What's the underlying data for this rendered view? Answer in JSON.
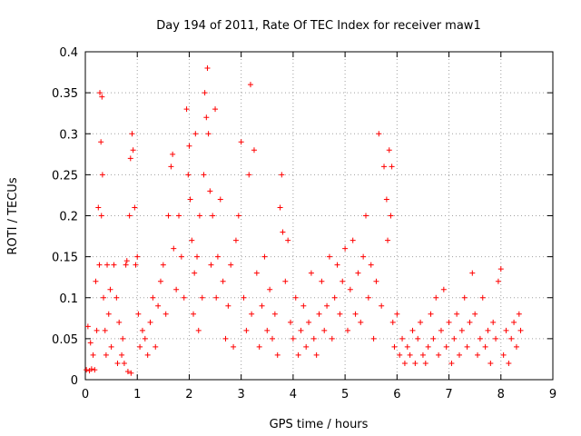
{
  "chart_data": {
    "type": "scatter",
    "title": "Day 194 of 2011, Rate Of TEC Index for receiver maw1",
    "xlabel": "GPS time / hours",
    "ylabel": "ROTI / TECUs",
    "xlim": [
      0,
      9
    ],
    "ylim": [
      0,
      0.4
    ],
    "x_ticks": [
      "0",
      "1",
      "2",
      "3",
      "4",
      "5",
      "6",
      "7",
      "8",
      "9"
    ],
    "y_ticks": [
      "0",
      "0.05",
      "0.1",
      "0.15",
      "0.2",
      "0.25",
      "0.3",
      "0.35",
      "0.4"
    ],
    "grid": true,
    "marker": "+",
    "marker_color": "#ff0000",
    "series": [
      {
        "name": "maw1",
        "points": [
          [
            0.02,
            0.012
          ],
          [
            0.05,
            0.065
          ],
          [
            0.08,
            0.011
          ],
          [
            0.1,
            0.045
          ],
          [
            0.12,
            0.013
          ],
          [
            0.15,
            0.03
          ],
          [
            0.18,
            0.012
          ],
          [
            0.2,
            0.12
          ],
          [
            0.22,
            0.06
          ],
          [
            0.25,
            0.21
          ],
          [
            0.27,
            0.14
          ],
          [
            0.28,
            0.35
          ],
          [
            0.3,
            0.29
          ],
          [
            0.31,
            0.2
          ],
          [
            0.32,
            0.345
          ],
          [
            0.33,
            0.25
          ],
          [
            0.35,
            0.1
          ],
          [
            0.38,
            0.06
          ],
          [
            0.4,
            0.03
          ],
          [
            0.42,
            0.14
          ],
          [
            0.45,
            0.08
          ],
          [
            0.48,
            0.11
          ],
          [
            0.5,
            0.04
          ],
          [
            0.55,
            0.14
          ],
          [
            0.6,
            0.1
          ],
          [
            0.62,
            0.02
          ],
          [
            0.65,
            0.07
          ],
          [
            0.7,
            0.03
          ],
          [
            0.72,
            0.05
          ],
          [
            0.75,
            0.02
          ],
          [
            0.78,
            0.14
          ],
          [
            0.8,
            0.145
          ],
          [
            0.82,
            0.01
          ],
          [
            0.85,
            0.2
          ],
          [
            0.87,
            0.27
          ],
          [
            0.88,
            0.008
          ],
          [
            0.9,
            0.3
          ],
          [
            0.92,
            0.28
          ],
          [
            0.95,
            0.21
          ],
          [
            0.97,
            0.14
          ],
          [
            1.0,
            0.15
          ],
          [
            1.02,
            0.08
          ],
          [
            1.05,
            0.04
          ],
          [
            1.1,
            0.06
          ],
          [
            1.15,
            0.05
          ],
          [
            1.2,
            0.03
          ],
          [
            1.25,
            0.07
          ],
          [
            1.3,
            0.1
          ],
          [
            1.35,
            0.04
          ],
          [
            1.4,
            0.09
          ],
          [
            1.45,
            0.12
          ],
          [
            1.5,
            0.14
          ],
          [
            1.55,
            0.08
          ],
          [
            1.6,
            0.2
          ],
          [
            1.65,
            0.26
          ],
          [
            1.68,
            0.275
          ],
          [
            1.7,
            0.16
          ],
          [
            1.75,
            0.11
          ],
          [
            1.8,
            0.2
          ],
          [
            1.85,
            0.15
          ],
          [
            1.9,
            0.1
          ],
          [
            1.95,
            0.33
          ],
          [
            1.98,
            0.25
          ],
          [
            2.0,
            0.285
          ],
          [
            2.02,
            0.22
          ],
          [
            2.05,
            0.17
          ],
          [
            2.08,
            0.08
          ],
          [
            2.1,
            0.13
          ],
          [
            2.12,
            0.3
          ],
          [
            2.15,
            0.15
          ],
          [
            2.18,
            0.06
          ],
          [
            2.2,
            0.2
          ],
          [
            2.25,
            0.1
          ],
          [
            2.28,
            0.25
          ],
          [
            2.3,
            0.35
          ],
          [
            2.33,
            0.32
          ],
          [
            2.35,
            0.38
          ],
          [
            2.37,
            0.3
          ],
          [
            2.4,
            0.23
          ],
          [
            2.42,
            0.14
          ],
          [
            2.45,
            0.2
          ],
          [
            2.5,
            0.33
          ],
          [
            2.52,
            0.1
          ],
          [
            2.55,
            0.15
          ],
          [
            2.6,
            0.22
          ],
          [
            2.65,
            0.12
          ],
          [
            2.7,
            0.05
          ],
          [
            2.75,
            0.09
          ],
          [
            2.8,
            0.14
          ],
          [
            2.85,
            0.04
          ],
          [
            2.9,
            0.17
          ],
          [
            2.95,
            0.2
          ],
          [
            3.0,
            0.29
          ],
          [
            3.05,
            0.1
          ],
          [
            3.1,
            0.06
          ],
          [
            3.15,
            0.25
          ],
          [
            3.18,
            0.36
          ],
          [
            3.2,
            0.08
          ],
          [
            3.25,
            0.28
          ],
          [
            3.3,
            0.13
          ],
          [
            3.35,
            0.04
          ],
          [
            3.4,
            0.09
          ],
          [
            3.45,
            0.15
          ],
          [
            3.5,
            0.06
          ],
          [
            3.55,
            0.11
          ],
          [
            3.6,
            0.05
          ],
          [
            3.65,
            0.08
          ],
          [
            3.7,
            0.03
          ],
          [
            3.75,
            0.21
          ],
          [
            3.78,
            0.25
          ],
          [
            3.8,
            0.18
          ],
          [
            3.85,
            0.12
          ],
          [
            3.9,
            0.17
          ],
          [
            3.95,
            0.07
          ],
          [
            4.0,
            0.05
          ],
          [
            4.05,
            0.1
          ],
          [
            4.1,
            0.03
          ],
          [
            4.15,
            0.06
          ],
          [
            4.2,
            0.09
          ],
          [
            4.25,
            0.04
          ],
          [
            4.3,
            0.07
          ],
          [
            4.35,
            0.13
          ],
          [
            4.4,
            0.05
          ],
          [
            4.45,
            0.03
          ],
          [
            4.5,
            0.08
          ],
          [
            4.55,
            0.12
          ],
          [
            4.6,
            0.06
          ],
          [
            4.65,
            0.09
          ],
          [
            4.7,
            0.15
          ],
          [
            4.75,
            0.05
          ],
          [
            4.8,
            0.1
          ],
          [
            4.85,
            0.14
          ],
          [
            4.9,
            0.08
          ],
          [
            4.95,
            0.12
          ],
          [
            5.0,
            0.16
          ],
          [
            5.05,
            0.06
          ],
          [
            5.1,
            0.11
          ],
          [
            5.15,
            0.17
          ],
          [
            5.2,
            0.08
          ],
          [
            5.25,
            0.13
          ],
          [
            5.3,
            0.07
          ],
          [
            5.35,
            0.15
          ],
          [
            5.4,
            0.2
          ],
          [
            5.45,
            0.1
          ],
          [
            5.5,
            0.14
          ],
          [
            5.55,
            0.05
          ],
          [
            5.6,
            0.12
          ],
          [
            5.65,
            0.3
          ],
          [
            5.7,
            0.09
          ],
          [
            5.75,
            0.26
          ],
          [
            5.8,
            0.22
          ],
          [
            5.82,
            0.17
          ],
          [
            5.85,
            0.28
          ],
          [
            5.88,
            0.2
          ],
          [
            5.9,
            0.26
          ],
          [
            5.92,
            0.07
          ],
          [
            5.95,
            0.04
          ],
          [
            6.0,
            0.08
          ],
          [
            6.05,
            0.03
          ],
          [
            6.1,
            0.05
          ],
          [
            6.15,
            0.02
          ],
          [
            6.2,
            0.04
          ],
          [
            6.25,
            0.03
          ],
          [
            6.3,
            0.06
          ],
          [
            6.35,
            0.02
          ],
          [
            6.4,
            0.05
          ],
          [
            6.45,
            0.07
          ],
          [
            6.5,
            0.03
          ],
          [
            6.55,
            0.02
          ],
          [
            6.6,
            0.04
          ],
          [
            6.65,
            0.08
          ],
          [
            6.7,
            0.05
          ],
          [
            6.75,
            0.1
          ],
          [
            6.8,
            0.03
          ],
          [
            6.85,
            0.06
          ],
          [
            6.9,
            0.11
          ],
          [
            6.95,
            0.04
          ],
          [
            7.0,
            0.07
          ],
          [
            7.05,
            0.02
          ],
          [
            7.1,
            0.05
          ],
          [
            7.15,
            0.08
          ],
          [
            7.2,
            0.03
          ],
          [
            7.25,
            0.06
          ],
          [
            7.3,
            0.1
          ],
          [
            7.35,
            0.04
          ],
          [
            7.4,
            0.07
          ],
          [
            7.45,
            0.13
          ],
          [
            7.5,
            0.08
          ],
          [
            7.55,
            0.03
          ],
          [
            7.6,
            0.05
          ],
          [
            7.65,
            0.1
          ],
          [
            7.7,
            0.04
          ],
          [
            7.75,
            0.06
          ],
          [
            7.8,
            0.02
          ],
          [
            7.85,
            0.07
          ],
          [
            7.9,
            0.05
          ],
          [
            7.95,
            0.12
          ],
          [
            8.0,
            0.135
          ],
          [
            8.05,
            0.03
          ],
          [
            8.1,
            0.06
          ],
          [
            8.15,
            0.02
          ],
          [
            8.2,
            0.05
          ],
          [
            8.25,
            0.07
          ],
          [
            8.3,
            0.04
          ],
          [
            8.35,
            0.08
          ],
          [
            8.38,
            0.06
          ]
        ]
      }
    ]
  }
}
